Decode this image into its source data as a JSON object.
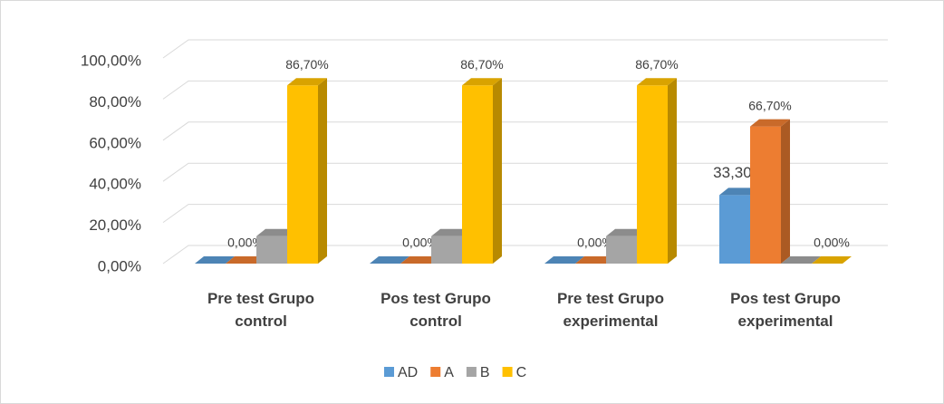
{
  "chart_data": {
    "type": "bar3d",
    "categories": [
      "Pre test Grupo control",
      "Pos test Grupo control",
      "Pre test Grupo experimental",
      "Pos test Grupo experimental"
    ],
    "series": [
      {
        "name": "AD",
        "color": "#5b9bd5",
        "values": [
          0,
          0,
          0,
          33.3
        ],
        "value_labels": [
          null,
          null,
          null,
          "33,30%"
        ]
      },
      {
        "name": "A",
        "color": "#ed7d31",
        "values": [
          0,
          0,
          0,
          66.7
        ],
        "value_labels": [
          "0,00%",
          "0,00%",
          "0,00%",
          "66,70%"
        ]
      },
      {
        "name": "B",
        "color": "#a5a5a5",
        "values": [
          13.3,
          13.3,
          13.3,
          0
        ],
        "value_labels": [
          null,
          null,
          null,
          null
        ]
      },
      {
        "name": "C",
        "color": "#ffc000",
        "values": [
          86.7,
          86.7,
          86.7,
          0
        ],
        "value_labels": [
          "86,70%",
          "86,70%",
          "86,70%",
          "0,00%"
        ]
      }
    ],
    "ylim": [
      0,
      100
    ],
    "yticks": [
      {
        "value": 0,
        "label": "0,00%"
      },
      {
        "value": 20,
        "label": "20,00%"
      },
      {
        "value": 40,
        "label": "40,00%"
      },
      {
        "value": 60,
        "label": "60,00%"
      },
      {
        "value": 80,
        "label": "80,00%"
      },
      {
        "value": 100,
        "label": "100,00%"
      }
    ],
    "grid": true,
    "legend": "bottom"
  }
}
